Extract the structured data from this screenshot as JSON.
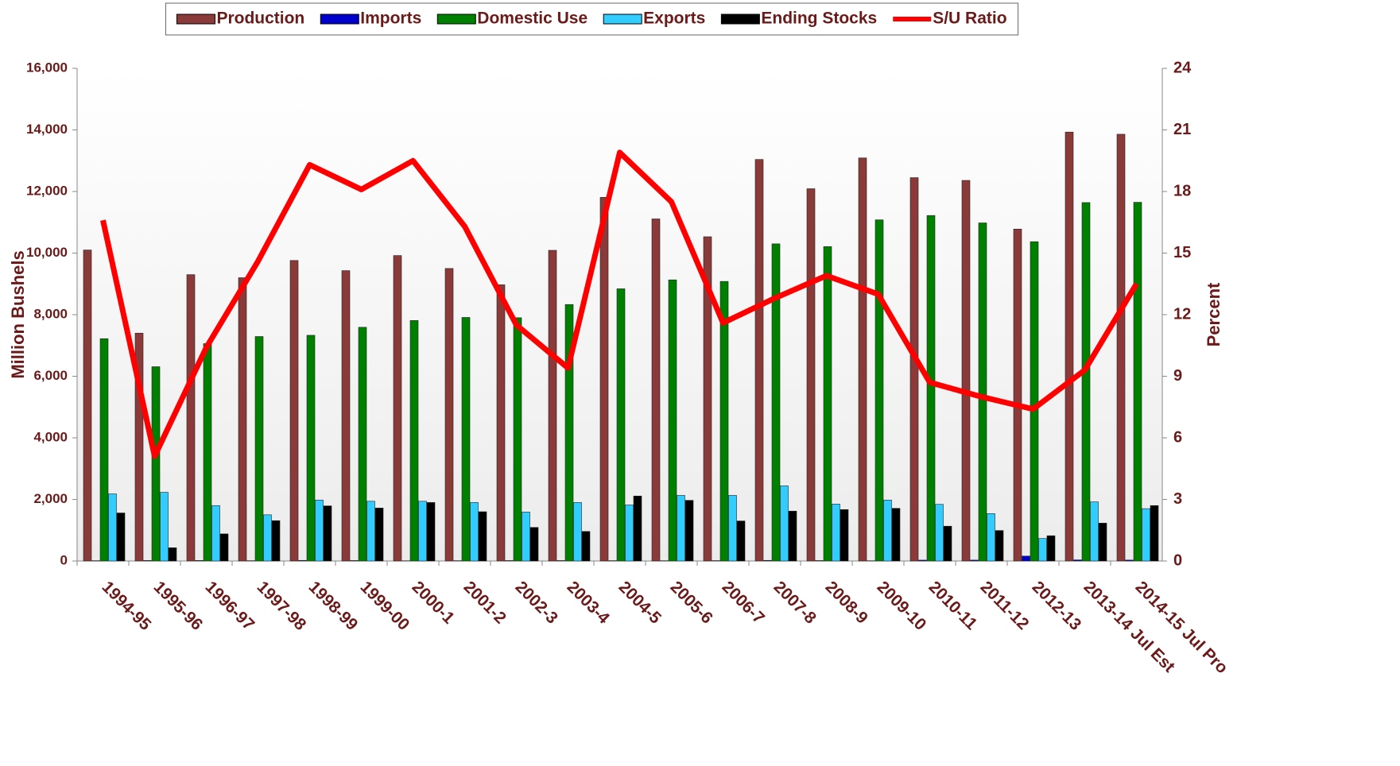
{
  "chart_data": {
    "type": "bar",
    "categories": [
      "1994-95",
      "1995-96",
      "1996-97",
      "1997-98",
      "1998-99",
      "1999-00",
      "2000-1",
      "2001-2",
      "2002-3",
      "2003-4",
      "2004-5",
      "2005-6",
      "2006-7",
      "2007-8",
      "2008-9",
      "2009-10",
      "2010-11",
      "2011-12",
      "2012-13",
      "2013-14 Jul Est",
      "2014-15 Jul Pro"
    ],
    "series": [
      {
        "name": "Production",
        "color": "#8b3a3a",
        "values": [
          10100,
          7400,
          9300,
          9200,
          9760,
          9430,
          9920,
          9500,
          8970,
          10090,
          11810,
          11110,
          10530,
          13040,
          12090,
          13090,
          12450,
          12360,
          10780,
          13930,
          13860
        ]
      },
      {
        "name": "Imports",
        "color": "#0000cc",
        "values": [
          10,
          16,
          16,
          10,
          19,
          15,
          7,
          10,
          14,
          14,
          11,
          9,
          12,
          20,
          14,
          8,
          28,
          29,
          160,
          36,
          30
        ]
      },
      {
        "name": "Domestic Use",
        "color": "#008000",
        "values": [
          7220,
          6310,
          7060,
          7290,
          7330,
          7590,
          7810,
          7910,
          7900,
          8330,
          8840,
          9130,
          9080,
          10300,
          10210,
          11080,
          11220,
          10980,
          10370,
          11640,
          11650
        ]
      },
      {
        "name": "Exports",
        "color": "#33ccff",
        "values": [
          2180,
          2230,
          1800,
          1500,
          1980,
          1940,
          1940,
          1900,
          1590,
          1900,
          1820,
          2130,
          2130,
          2440,
          1850,
          1980,
          1840,
          1540,
          730,
          1920,
          1700
        ]
      },
      {
        "name": "Ending Stocks",
        "color": "#000000",
        "values": [
          1560,
          430,
          880,
          1310,
          1790,
          1720,
          1900,
          1600,
          1090,
          960,
          2110,
          1970,
          1300,
          1620,
          1670,
          1710,
          1130,
          990,
          820,
          1230,
          1800
        ]
      },
      {
        "name": "S/U Ratio",
        "color": "#ff0000",
        "type": "line",
        "axis": "y2",
        "values": [
          16.6,
          5.1,
          10.4,
          14.6,
          19.3,
          18.1,
          19.5,
          16.3,
          11.5,
          9.4,
          19.9,
          17.5,
          11.6,
          12.8,
          13.9,
          13.0,
          8.7,
          8.0,
          7.4,
          9.3,
          13.5
        ]
      }
    ],
    "y_label": "Million Bushels",
    "y2_label": "Percent",
    "ylim": [
      0,
      16000
    ],
    "yticks": [
      0,
      {
        "value": 2000,
        "label": "2,000"
      },
      {
        "value": 4000,
        "label": "4,000"
      },
      {
        "value": 6000,
        "label": "6,000"
      },
      {
        "value": 8000,
        "label": "8,000"
      },
      {
        "value": 10000,
        "label": "10,000"
      },
      {
        "value": 12000,
        "label": "12,000"
      },
      {
        "value": 14000,
        "label": "14,000"
      },
      {
        "value": 16000,
        "label": "16,000"
      }
    ],
    "y2lim": [
      0,
      24
    ],
    "y2ticks": [
      0,
      3,
      6,
      9,
      12,
      15,
      18,
      21,
      24
    ],
    "legend": "top"
  }
}
